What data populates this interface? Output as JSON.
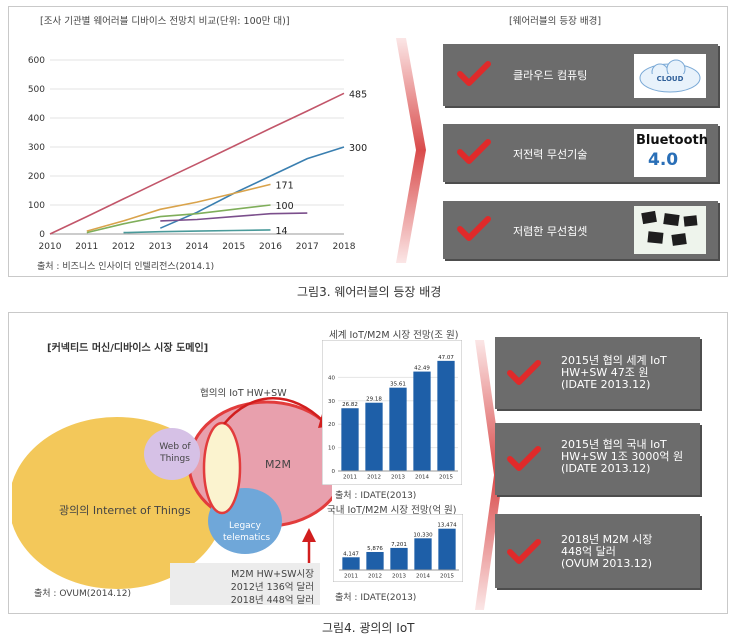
{
  "fig3": {
    "chart_title": "[조사 기관별 웨어러블 디바이스 전망치 비교(단위: 100만 대)]",
    "source": "출처 : 비즈니스 인사이더 인텔리전스(2014.1)",
    "right_title": "[웨어러블의 등장 배경]",
    "items": [
      {
        "label": "클라우드 컴퓨팅",
        "icon": "cloud-computing-logo"
      },
      {
        "label": "저전력 무선기술",
        "icon": "bluetooth-4-logo",
        "logo_text": "Bluetooth",
        "logo_version": "4.0"
      },
      {
        "label": "저렴한 무선칩셋",
        "icon": "chipset-image"
      }
    ],
    "caption": "그림3. 웨어러블의 등장 배경"
  },
  "fig4": {
    "domain_title": "[커넥티드 머신/디바이스 시장 도메인]",
    "narrow_label": "협의의 IoT HW+SW",
    "venn": {
      "broad": "광의의 Internet of Things",
      "m2m": "M2M",
      "web": "Web of Things",
      "legacy": "Legacy telematics"
    },
    "venn_source": "출처 : OVUM(2014.12)",
    "note_lines": [
      "M2M HW+SW시장",
      "2012년 136억 달러",
      "2018년 448억 달러"
    ],
    "chart1_title": "세계 IoT/M2M 시장 전망(조 원)",
    "chart1_source": "출처 : IDATE(2013)",
    "chart2_title": "국내 IoT/M2M 시장 전망(억 원)",
    "chart2_source": "출처 : IDATE(2013)",
    "boxes": [
      [
        "2015년 협의 세계 IoT",
        "HW+SW 47조 원",
        "(IDATE 2013.12)"
      ],
      [
        "2015년 협의 국내 IoT",
        "HW+SW 1조 3000억 원",
        "(IDATE 2013.12)"
      ],
      [
        "2018년 M2M 시장",
        "448억 달러",
        "(OVUM 2013.12)"
      ]
    ],
    "caption": "그림4. 광의의 IoT"
  },
  "chart_data": [
    {
      "type": "line",
      "title": "[조사 기관별 웨어러블 디바이스 전망치 비교(단위: 100만 대)]",
      "x": [
        2010,
        2011,
        2012,
        2013,
        2014,
        2015,
        2016,
        2017,
        2018
      ],
      "ylim": [
        0,
        600
      ],
      "yticks": [
        0,
        100,
        200,
        300,
        400,
        500,
        600
      ],
      "grid": true,
      "series": [
        {
          "values": [
            0,
            60,
            121,
            182,
            242,
            303,
            364,
            424,
            485
          ],
          "color": "#c2566a",
          "end_label": "485"
        },
        {
          "values": [
            null,
            null,
            null,
            20,
            75,
            140,
            200,
            260,
            300
          ],
          "color": "#3a7fb0",
          "end_label": "300"
        },
        {
          "values": [
            null,
            10,
            45,
            85,
            110,
            140,
            171,
            null,
            null
          ],
          "color": "#d9a34b",
          "end_label": "171"
        },
        {
          "values": [
            null,
            5,
            35,
            60,
            70,
            85,
            100,
            null,
            null
          ],
          "color": "#7fae5a",
          "end_label": "100"
        },
        {
          "values": [
            null,
            null,
            null,
            45,
            50,
            60,
            70,
            72,
            null
          ],
          "color": "#7b4f8c",
          "end_label": ""
        },
        {
          "values": [
            null,
            null,
            5,
            8,
            10,
            12,
            14,
            null,
            null
          ],
          "color": "#4a9a9a",
          "end_label": "14"
        }
      ]
    },
    {
      "type": "bar",
      "title": "세계 IoT/M2M 시장 전망(조 원)",
      "categories": [
        "2011",
        "2012",
        "2013",
        "2014",
        "2015"
      ],
      "values": [
        26.82,
        29.18,
        35.61,
        42.49,
        47.07
      ],
      "value_labels": [
        "26.82",
        "29.18",
        "35.61",
        "42.49",
        "47.07"
      ],
      "ylim": [
        0,
        50
      ],
      "yticks": [
        0,
        10,
        20,
        30,
        40
      ],
      "color": "#1e5fa8"
    },
    {
      "type": "bar",
      "title": "국내 IoT/M2M 시장 전망(억 원)",
      "categories": [
        "2011",
        "2012",
        "2013",
        "2014",
        "2015"
      ],
      "values": [
        4147,
        5876,
        7201,
        10330,
        13474
      ],
      "value_labels": [
        "4,147",
        "5,876",
        "7,201",
        "10,330",
        "13,474"
      ],
      "ylim": [
        0,
        15000
      ],
      "color": "#1e5fa8"
    }
  ]
}
